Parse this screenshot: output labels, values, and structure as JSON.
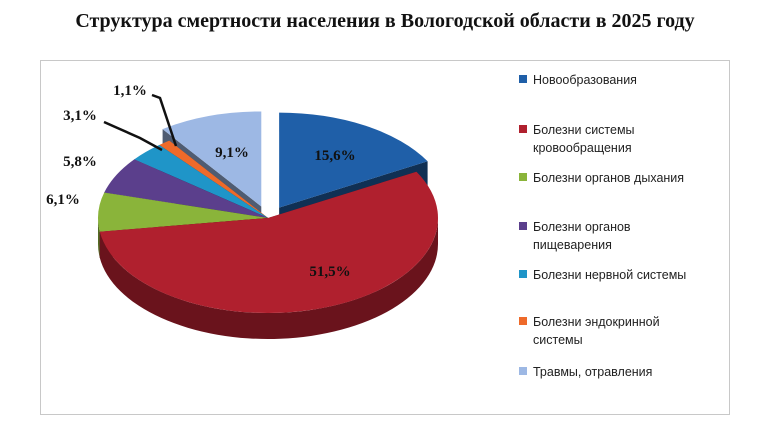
{
  "title": "Структура смертности населения в Вологодской области в 2025 году",
  "chart_data": {
    "type": "pie",
    "title": "Структура смертности населения в Вологодской области в 2025 году",
    "legend_position": "right",
    "slices": [
      {
        "label": "Новообразования",
        "value": 15.6,
        "value_label": "15,6%",
        "color": "#1f5fa8",
        "exploded": true
      },
      {
        "label": "Болезни системы кровообращения",
        "value": 51.5,
        "value_label": "51,5%",
        "color": "#b0202e",
        "exploded": false
      },
      {
        "label": "Болезни органов дыхания",
        "value": 6.1,
        "value_label": "6,1%",
        "color": "#8ab43a",
        "exploded": false
      },
      {
        "label": "Болезни органов пищеварения",
        "value": 5.8,
        "value_label": "5,8%",
        "color": "#5b3f8c",
        "exploded": false
      },
      {
        "label": "Болезни нервной системы",
        "value": 3.1,
        "value_label": "3,1%",
        "color": "#1f95c8",
        "exploded": false
      },
      {
        "label": "Болезни эндокринной системы",
        "value": 1.1,
        "value_label": "1,1%",
        "color": "#ee6a2a",
        "exploded": false
      },
      {
        "label": "Травмы, отравления",
        "value": 9.1,
        "value_label": "9,1%",
        "color": "#9db8e4",
        "exploded": true
      }
    ],
    "legend_lines": [
      [
        "Новообразования"
      ],
      [
        "Болезни системы",
        "кровообращения"
      ],
      [
        "Болезни органов дыхания"
      ],
      [
        "Болезни органов",
        "пищеварения"
      ],
      [
        "Болезни нервной системы"
      ],
      [
        "Болезни эндокринной",
        "системы"
      ],
      [
        "Травмы, отравления"
      ]
    ]
  }
}
